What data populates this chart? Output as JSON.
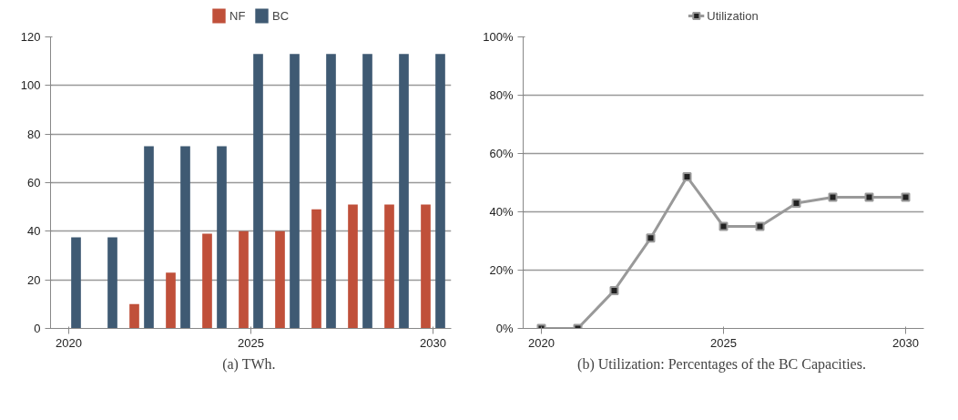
{
  "chart_data": [
    {
      "type": "bar",
      "title": "(a)  TWh.",
      "categories": [
        "2020",
        null,
        null,
        null,
        null,
        "2025",
        null,
        null,
        null,
        null,
        "2030"
      ],
      "series": [
        {
          "name": "NF",
          "color": "#c0503a",
          "values": [
            0,
            0,
            10,
            23,
            39,
            40,
            40,
            49,
            51,
            51,
            51
          ]
        },
        {
          "name": "BC",
          "color": "#3f5a73",
          "values": [
            37.5,
            37.5,
            75,
            75,
            75,
            113,
            113,
            113,
            113,
            113,
            113
          ]
        }
      ],
      "ylim": [
        0,
        120
      ],
      "yticks": [
        0,
        20,
        40,
        60,
        80,
        100,
        120
      ],
      "grid": "y",
      "legend": "top"
    },
    {
      "type": "line",
      "title": "(b)  Utilization: Percentages of the BC Capacities.",
      "categories": [
        "2020",
        null,
        null,
        null,
        null,
        "2025",
        null,
        null,
        null,
        null,
        "2030"
      ],
      "series": [
        {
          "name": "Utilization",
          "color": "#999999",
          "values": [
            0,
            0,
            13,
            31,
            52,
            35,
            35,
            43,
            45,
            45,
            45
          ]
        }
      ],
      "ylim": [
        0,
        100
      ],
      "yticks": [
        {
          "value": 0,
          "label": "0%"
        },
        {
          "value": 20,
          "label": "20%"
        },
        {
          "value": 40,
          "label": "40%"
        },
        {
          "value": 60,
          "label": "60%"
        },
        {
          "value": 80,
          "label": "80%"
        },
        {
          "value": 100,
          "label": "100%"
        }
      ],
      "grid": "y",
      "legend": "top",
      "marker": "square",
      "line_style": "solid"
    }
  ]
}
